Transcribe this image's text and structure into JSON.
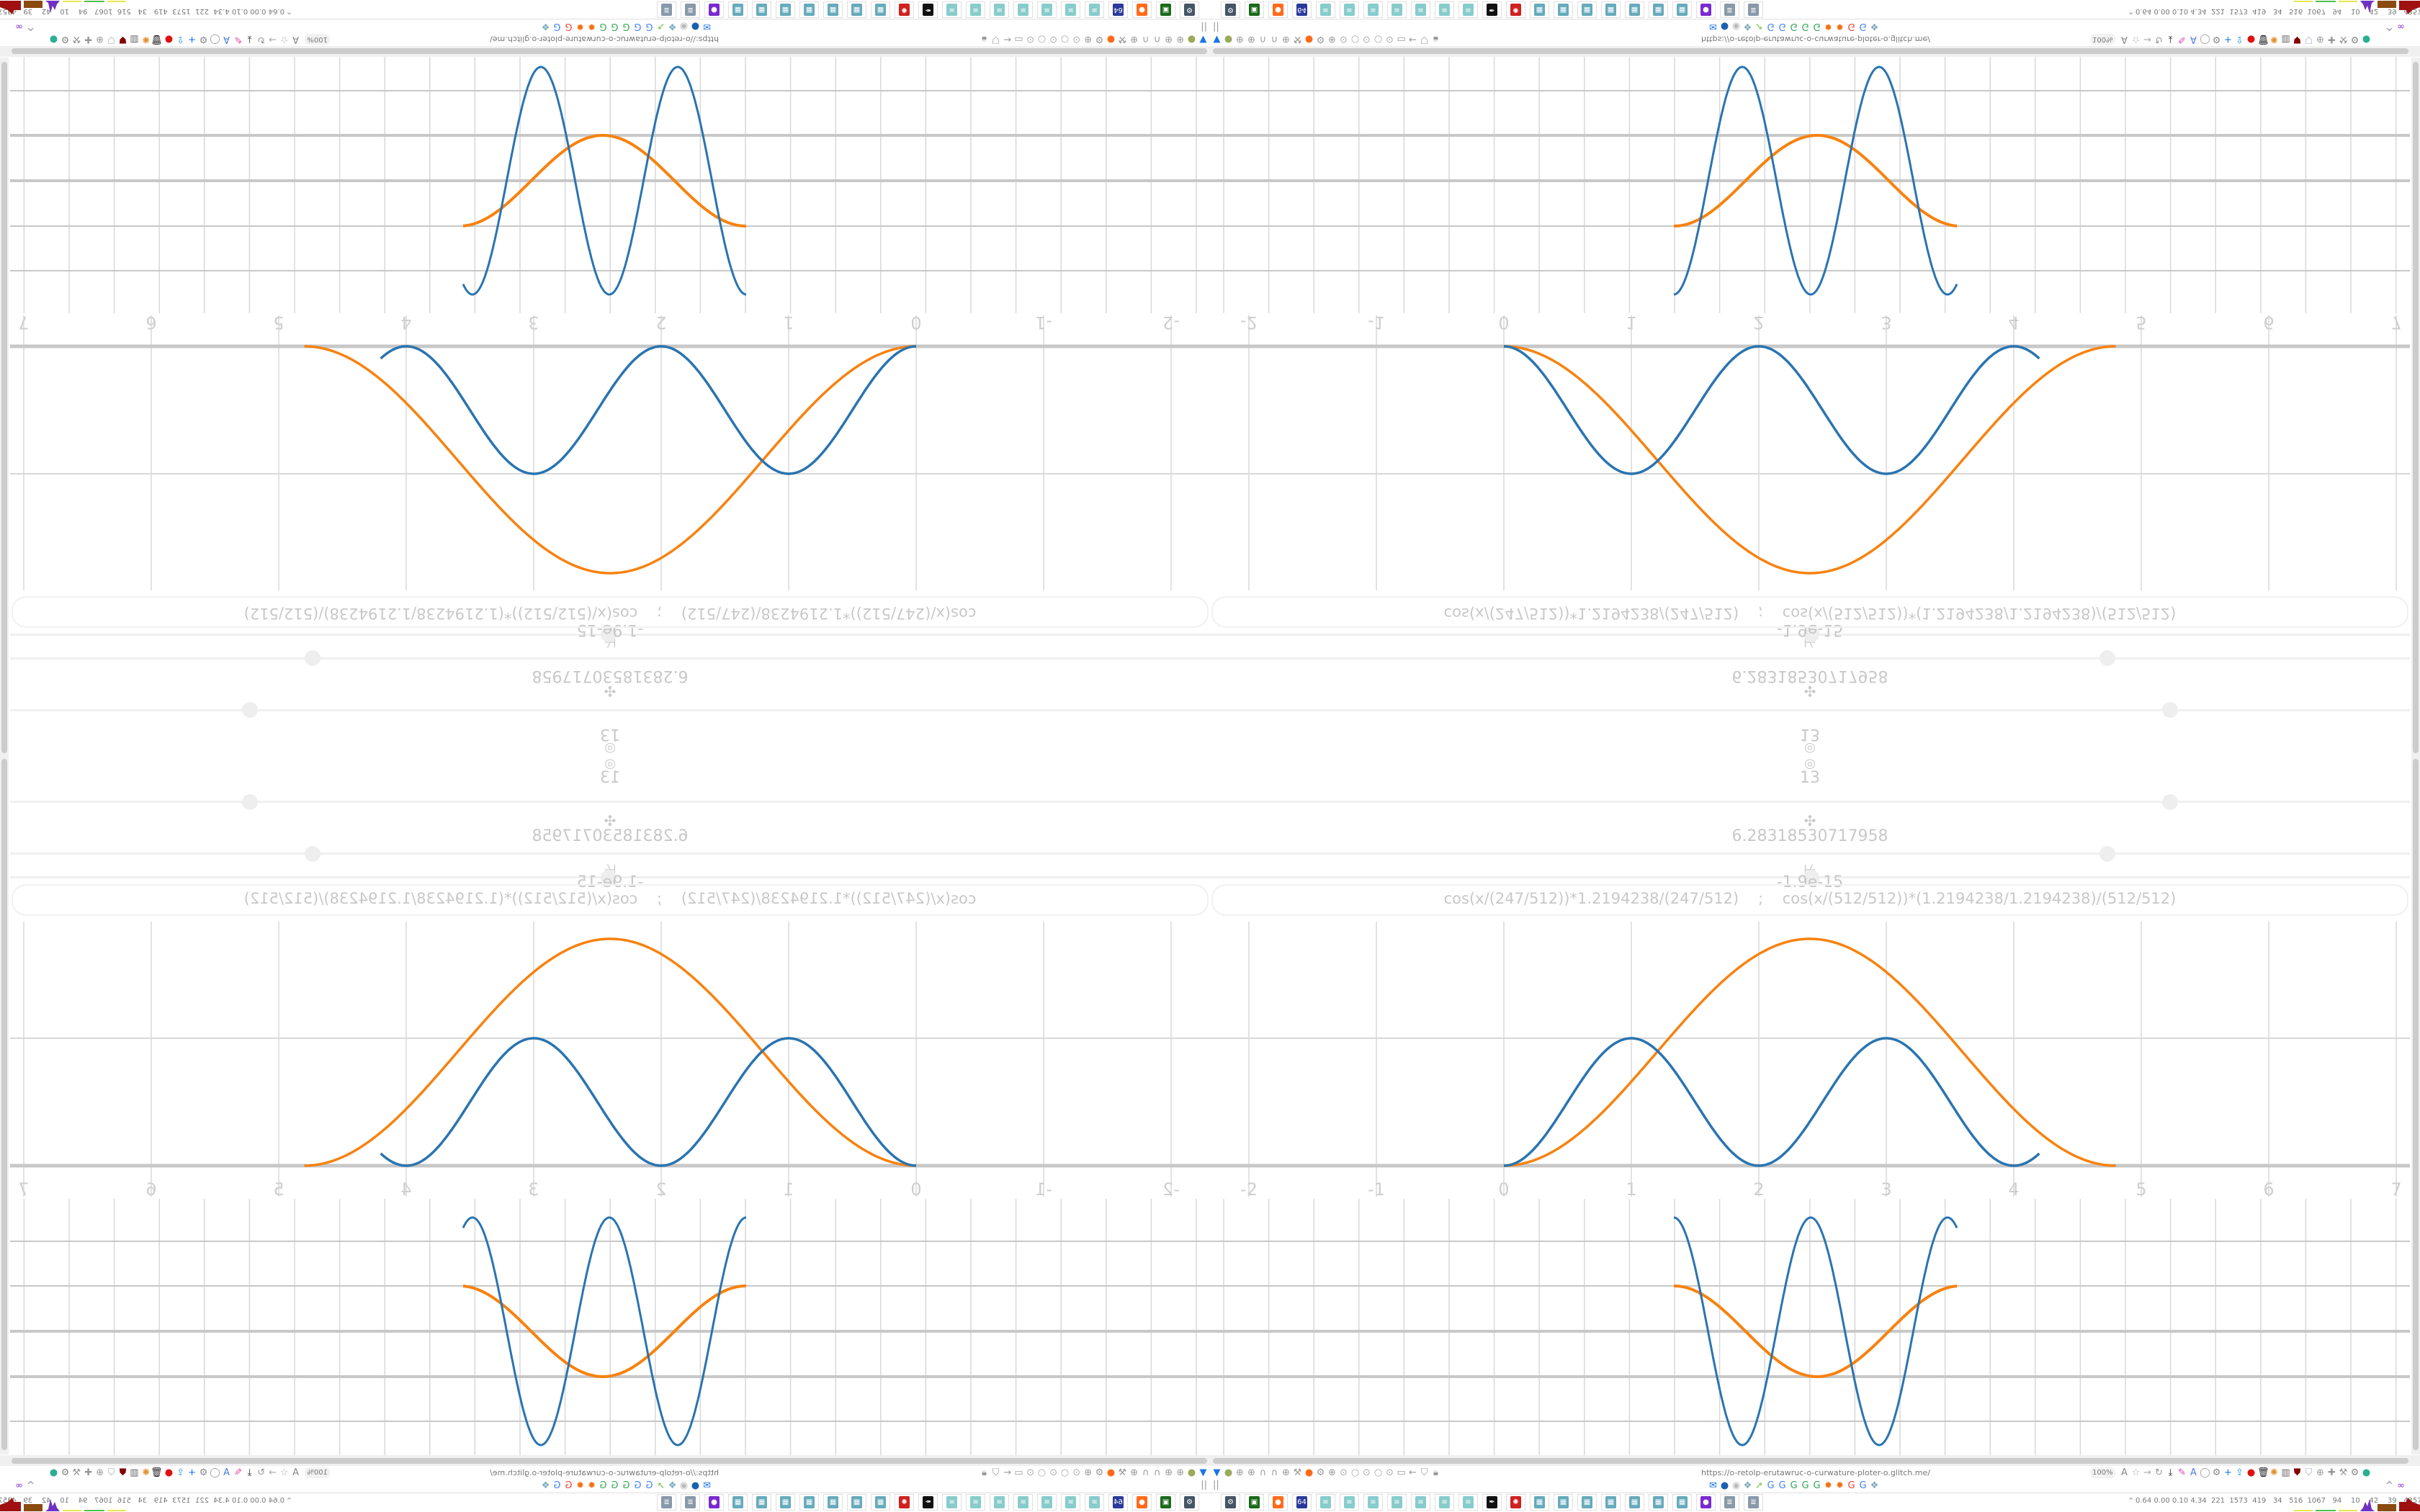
{
  "colors": {
    "blue_curve": "#2a74b0",
    "orange_curve": "#f7820f",
    "grid": "#d8d8d8",
    "axis": "#c8c8c8",
    "muted_text": "#c8c8c8"
  },
  "controls": {
    "center_icon": "target-icon",
    "center_glyph": "◎",
    "count_value": "13",
    "slider1": {
      "icon": "move-icon",
      "glyph": "✣",
      "value": "6.28318530717958",
      "position": 0.8
    },
    "slider2": {
      "icon": "resize-icon",
      "glyph": "⊬",
      "value": "-1.9e-15",
      "position": 0.5
    }
  },
  "expression": "cos(x/(247/512))*1.2194238/(247/512)    ;    cos(x/(512/512))*(1.2194238/1.2194238)/(512/512)",
  "graph": {
    "x_ticks": [
      "-2",
      "-1",
      "0",
      "1",
      "2",
      "3",
      "4",
      "5",
      "6",
      "7"
    ]
  },
  "browser": {
    "url": "https://o-retolp-erutawruc-o-curwature-ploter-o.glitch.me/",
    "zoom": "100%",
    "left_icons": [
      {
        "name": "filter-icon",
        "glyph": "▼",
        "color": "#1a73e8"
      },
      {
        "name": "extension-icon",
        "glyph": "●",
        "color": "#9aaa5a"
      },
      {
        "name": "globe-icon",
        "glyph": "⊕",
        "color": "#999"
      },
      {
        "name": "globe-icon",
        "glyph": "⊕",
        "color": "#999"
      },
      {
        "name": "headphones-icon",
        "glyph": "∩",
        "color": "#999"
      },
      {
        "name": "headphones-icon",
        "glyph": "∩",
        "color": "#999"
      },
      {
        "name": "globe-icon",
        "glyph": "⊕",
        "color": "#999"
      },
      {
        "name": "wrench-icon",
        "glyph": "⚒",
        "color": "#999"
      },
      {
        "name": "firefox-icon",
        "glyph": "●",
        "color": "#ff6b1a"
      },
      {
        "name": "gear-icon",
        "glyph": "⚙",
        "color": "#999"
      },
      {
        "name": "globe-icon",
        "glyph": "⊕",
        "color": "#999"
      },
      {
        "name": "dot-icon",
        "glyph": "⊙",
        "color": "#aaa"
      },
      {
        "name": "circle-icon",
        "glyph": "○",
        "color": "#aaa"
      },
      {
        "name": "dot-icon",
        "glyph": "⊙",
        "color": "#aaa"
      },
      {
        "name": "circle-icon",
        "glyph": "○",
        "color": "#aaa"
      },
      {
        "name": "dot-icon",
        "glyph": "⊙",
        "color": "#aaa"
      },
      {
        "name": "folder-icon",
        "glyph": "▭",
        "color": "#999"
      },
      {
        "name": "back-arrow-icon",
        "glyph": "←",
        "color": "#999"
      },
      {
        "name": "shield-icon",
        "glyph": "⛉",
        "color": "#999"
      },
      {
        "name": "lock-icon",
        "glyph": "🔒︎",
        "color": "#999"
      }
    ],
    "right_icons": [
      {
        "name": "translate-icon",
        "glyph": "A",
        "color": "#888"
      },
      {
        "name": "star-icon",
        "glyph": "☆",
        "color": "#aaa"
      },
      {
        "name": "forward-arrow-icon",
        "glyph": "→",
        "color": "#aaa"
      },
      {
        "name": "reload-icon",
        "glyph": "↻",
        "color": "#999"
      },
      {
        "name": "download-icon",
        "glyph": "⤓",
        "color": "#222"
      },
      {
        "name": "color-picker-icon",
        "glyph": "✎",
        "color": "#e040a0"
      },
      {
        "name": "translate-icon",
        "glyph": "A",
        "color": "#4a7de0"
      },
      {
        "name": "mouse-icon",
        "glyph": "◯",
        "color": "#999"
      },
      {
        "name": "gear-icon",
        "glyph": "⚙",
        "color": "#888"
      },
      {
        "name": "plus-icon",
        "glyph": "+",
        "color": "#1a73e8"
      },
      {
        "name": "upload-icon",
        "glyph": "⇪",
        "color": "#2aa0d8"
      },
      {
        "name": "record-icon",
        "glyph": "●",
        "color": "#e01010"
      },
      {
        "name": "trash-icon",
        "glyph": "🗑︎",
        "color": "#222"
      },
      {
        "name": "share-icon",
        "glyph": "✺",
        "color": "#e0902a"
      },
      {
        "name": "archive-icon",
        "glyph": "▥",
        "color": "#666"
      },
      {
        "name": "ublock-icon",
        "glyph": "⛊",
        "color": "#800000"
      },
      {
        "name": "shield-icon",
        "glyph": "⛉",
        "color": "#9ab"
      },
      {
        "name": "globe-icon",
        "glyph": "⊕",
        "color": "#999"
      },
      {
        "name": "puzzle-icon",
        "glyph": "✚",
        "color": "#999"
      },
      {
        "name": "wrench-icon",
        "glyph": "⚒",
        "color": "#999"
      },
      {
        "name": "gear-icon",
        "glyph": "⚙",
        "color": "#888"
      },
      {
        "name": "status-dot-icon",
        "glyph": "●",
        "color": "#2ab090"
      }
    ],
    "bookmark_icons": [
      {
        "name": "mail-icon",
        "glyph": "✉",
        "color": "#1a73e8"
      },
      {
        "name": "drop-icon",
        "glyph": "●",
        "color": "#1a60b0"
      },
      {
        "name": "mute-icon",
        "glyph": "◉",
        "color": "#bbb"
      },
      {
        "name": "cube-icon",
        "glyph": "❖",
        "color": "#7ab"
      },
      {
        "name": "compass-icon",
        "glyph": "➚",
        "color": "#7c4"
      },
      {
        "name": "google-icon",
        "glyph": "G",
        "color": "#4285f4"
      },
      {
        "name": "google-icon",
        "glyph": "G",
        "color": "#4285f4"
      },
      {
        "name": "google-icon",
        "glyph": "G",
        "color": "#34a853"
      },
      {
        "name": "google-icon",
        "glyph": "G",
        "color": "#34a853"
      },
      {
        "name": "google-icon",
        "glyph": "G",
        "color": "#34a853"
      },
      {
        "name": "sun-icon",
        "glyph": "✹",
        "color": "#f07010"
      },
      {
        "name": "sun-icon",
        "glyph": "✹",
        "color": "#f07010"
      },
      {
        "name": "google-icon",
        "glyph": "G",
        "color": "#ea4335"
      },
      {
        "name": "google-icon",
        "glyph": "G",
        "color": "#4285f4"
      },
      {
        "name": "cube-icon",
        "glyph": "❖",
        "color": "#7ab"
      }
    ],
    "bookmarks_left_glyph": "||",
    "bookmarks_right": [
      {
        "name": "chevron-up-icon",
        "glyph": "^",
        "color": "#888"
      },
      {
        "name": "profile-icon",
        "glyph": "∞",
        "color": "#8a2be2"
      }
    ]
  },
  "taskbar": {
    "apps": [
      {
        "name": "settings-monitor-app",
        "glyph": "⚙",
        "color": "#456"
      },
      {
        "name": "terminal-app",
        "glyph": "▣",
        "color": "#1a6a1a"
      },
      {
        "name": "firefox-app",
        "glyph": "●",
        "color": "#ff6b1a"
      },
      {
        "name": "save-app",
        "glyph": "64",
        "color": "#2a3a9a"
      },
      {
        "name": "notepad-app",
        "glyph": "≡",
        "color": "#8cc"
      },
      {
        "name": "notepad-app",
        "glyph": "≡",
        "color": "#8cc"
      },
      {
        "name": "notepad-app",
        "glyph": "≡",
        "color": "#8cc"
      },
      {
        "name": "notepad-app",
        "glyph": "≡",
        "color": "#8cc"
      },
      {
        "name": "notepad-app",
        "glyph": "≡",
        "color": "#8cc"
      },
      {
        "name": "notepad-app",
        "glyph": "≡",
        "color": "#8cc"
      },
      {
        "name": "notepad-app",
        "glyph": "≡",
        "color": "#8cc"
      },
      {
        "name": "inkscape-app",
        "glyph": "✒",
        "color": "#111"
      },
      {
        "name": "red-app",
        "glyph": "✺",
        "color": "#d02020"
      },
      {
        "name": "calculator-app",
        "glyph": "▦",
        "color": "#6ab"
      },
      {
        "name": "calculator-app",
        "glyph": "▦",
        "color": "#6ab"
      },
      {
        "name": "calculator-app",
        "glyph": "▦",
        "color": "#6ab"
      },
      {
        "name": "calculator-app",
        "glyph": "▦",
        "color": "#6ab"
      },
      {
        "name": "calculator-app",
        "glyph": "▦",
        "color": "#6ab"
      },
      {
        "name": "calculator-app",
        "glyph": "▦",
        "color": "#6ab"
      },
      {
        "name": "calculator-app",
        "glyph": "▦",
        "color": "#6ab"
      },
      {
        "name": "purple-app",
        "glyph": "●",
        "color": "#7a2ad0"
      },
      {
        "name": "document-app",
        "glyph": "≣",
        "color": "#89a"
      },
      {
        "name": "document-app",
        "glyph": "≣",
        "color": "#89a"
      }
    ],
    "tray_glyph": "⌃",
    "stats": "0.64 0.00 0.10 4.34  221  1573  419   34   516  1067   94    10    42    39   43575511"
  }
}
